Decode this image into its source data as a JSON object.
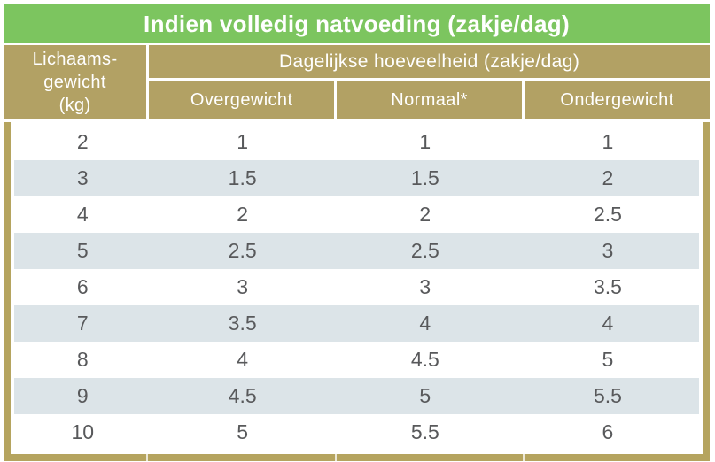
{
  "chart_data": {
    "type": "table",
    "title": "Indien volledig natvoeding (zakje/dag)",
    "column_group_header": "Dagelijkse hoeveelheid (zakje/dag)",
    "columns": [
      "Lichaamsgewicht (kg)",
      "Overgewicht",
      "Normaal*",
      "Ondergewicht"
    ],
    "rows": [
      [
        2,
        1,
        1,
        1
      ],
      [
        3,
        1.5,
        1.5,
        2
      ],
      [
        4,
        2,
        2,
        2.5
      ],
      [
        5,
        2.5,
        2.5,
        3
      ],
      [
        6,
        3,
        3,
        3.5
      ],
      [
        7,
        3.5,
        4,
        4
      ],
      [
        8,
        4,
        4.5,
        5
      ],
      [
        9,
        4.5,
        5,
        5.5
      ],
      [
        10,
        5,
        5.5,
        6
      ]
    ]
  },
  "header": {
    "col1_lines": [
      "Lichaams-",
      "gewicht",
      "(kg)"
    ]
  },
  "colors": {
    "title_green": "#7cc55f",
    "header_tan": "#b2a164",
    "frame_gold": "#b5a45f",
    "row_alt_blue_gray": "#dce4e8",
    "data_text_gray": "#58595b",
    "header_text": "#ffffff"
  }
}
